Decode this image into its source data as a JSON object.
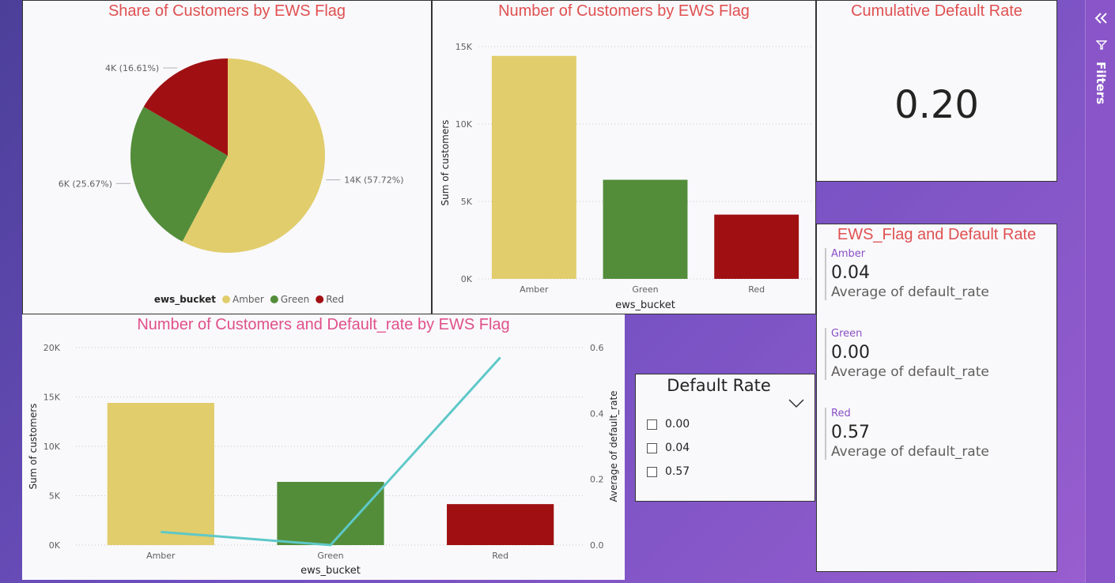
{
  "colors": {
    "amber": "#e1cd6c",
    "green": "#538d3a",
    "red": "#a01013",
    "line": "#5ec8c8",
    "title_red": "#e05050",
    "title_pink": "#e0508a"
  },
  "pie": {
    "title": "Share of Customers by EWS Flag",
    "legend_title": "ews_bucket",
    "chart_data": {
      "type": "pie",
      "categories": [
        "Amber",
        "Green",
        "Red"
      ],
      "values": [
        57.72,
        25.67,
        16.61
      ],
      "labels": [
        "14K (57.72%)",
        "6K (25.67%)",
        "4K (16.61%)"
      ]
    }
  },
  "bar": {
    "title": "Number of Customers by EWS Flag",
    "chart_data": {
      "type": "bar",
      "categories": [
        "Amber",
        "Green",
        "Red"
      ],
      "values": [
        14400,
        6400,
        4150
      ],
      "ylim": [
        0,
        15000
      ],
      "yticks": [
        "0K",
        "5K",
        "10K",
        "15K"
      ],
      "xlabel": "ews_bucket",
      "ylabel": "Sum of customers"
    }
  },
  "kpi": {
    "title": "Cumulative Default Rate",
    "value": "0.20"
  },
  "card": {
    "title": "EWS_Flag and Default Rate",
    "items": [
      {
        "category": "Amber",
        "value": "0.04",
        "label": "Average of default_rate"
      },
      {
        "category": "Green",
        "value": "0.00",
        "label": "Average of default_rate"
      },
      {
        "category": "Red",
        "value": "0.57",
        "label": "Average of default_rate"
      }
    ]
  },
  "combo": {
    "title": "Number of Customers and Default_rate by EWS Flag",
    "chart_data": {
      "type": "bar",
      "categories": [
        "Amber",
        "Green",
        "Red"
      ],
      "series": [
        {
          "name": "Sum of customers",
          "values": [
            14400,
            6400,
            4150
          ]
        },
        {
          "name": "Average of default_rate",
          "values": [
            0.04,
            0.0,
            0.57
          ]
        }
      ],
      "ylim": [
        0,
        20000
      ],
      "y2lim": [
        0,
        0.6
      ],
      "yticks": [
        "0K",
        "5K",
        "10K",
        "15K",
        "20K"
      ],
      "y2ticks": [
        "0.0",
        "0.2",
        "0.4",
        "0.6"
      ],
      "xlabel": "ews_bucket",
      "ylabel": "Sum of customers",
      "y2label": "Average of default_rate"
    }
  },
  "slicer": {
    "title": "Default Rate",
    "options": [
      "0.00",
      "0.04",
      "0.57"
    ]
  },
  "filters": {
    "label": "Filters"
  }
}
